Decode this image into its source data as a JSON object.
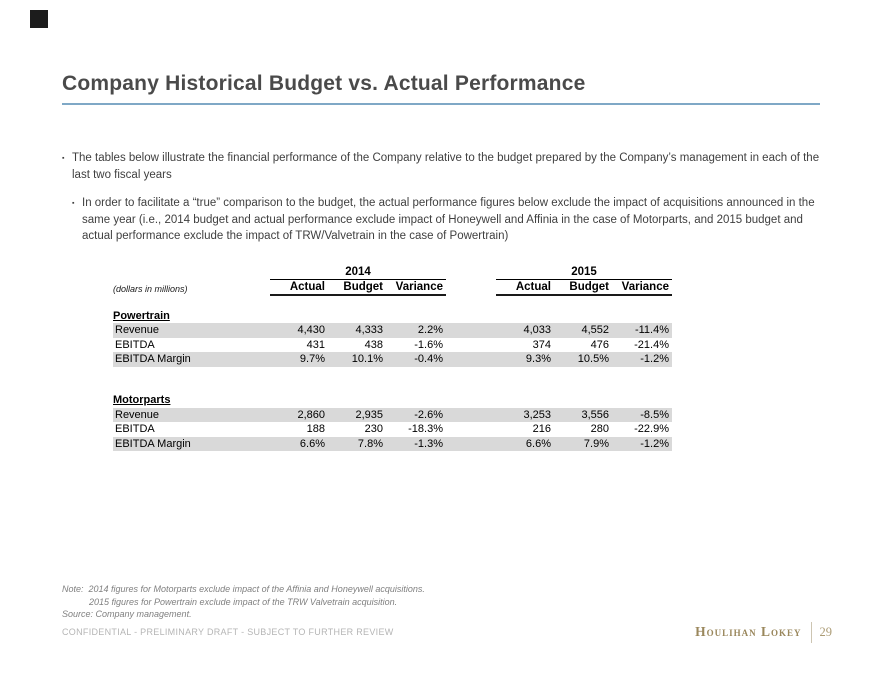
{
  "slide": {
    "title": "Company Historical Budget vs. Actual Performance",
    "accent_underline_color": "#7fa8c6",
    "shaded_row_color": "#d9d9d9",
    "brand_color": "#9a875c"
  },
  "bullets": {
    "level1": "The tables below illustrate the financial performance of the Company relative to the budget prepared by the Company’s management in each of the last two fiscal years",
    "level2": "In order to facilitate a “true” comparison to the budget, the actual performance figures below exclude the impact of acquisitions announced in the same year (i.e., 2014 budget and actual performance exclude impact of Honeywell and Affinia in the case of Motorparts, and 2015 budget and actual performance exclude the impact of TRW/Valvetrain in the case of Powertrain)"
  },
  "table": {
    "units_label": "(dollars in millions)",
    "year_groups": [
      "2014",
      "2015"
    ],
    "col_headers": [
      "Actual",
      "Budget",
      "Variance"
    ],
    "sections": [
      {
        "name": "Powertrain",
        "rows": [
          {
            "label": "Revenue",
            "y2014": [
              "4,430",
              "4,333",
              "2.2%"
            ],
            "y2015": [
              "4,033",
              "4,552",
              "-11.4%"
            ]
          },
          {
            "label": "EBITDA",
            "y2014": [
              "431",
              "438",
              "-1.6%"
            ],
            "y2015": [
              "374",
              "476",
              "-21.4%"
            ]
          },
          {
            "label": "EBITDA Margin",
            "y2014": [
              "9.7%",
              "10.1%",
              "-0.4%"
            ],
            "y2015": [
              "9.3%",
              "10.5%",
              "-1.2%"
            ]
          }
        ]
      },
      {
        "name": "Motorparts",
        "rows": [
          {
            "label": "Revenue",
            "y2014": [
              "2,860",
              "2,935",
              "-2.6%"
            ],
            "y2015": [
              "3,253",
              "3,556",
              "-8.5%"
            ]
          },
          {
            "label": "EBITDA",
            "y2014": [
              "188",
              "230",
              "-18.3%"
            ],
            "y2015": [
              "216",
              "280",
              "-22.9%"
            ]
          },
          {
            "label": "EBITDA Margin",
            "y2014": [
              "6.6%",
              "7.8%",
              "-1.3%"
            ],
            "y2015": [
              "6.6%",
              "7.9%",
              "-1.2%"
            ]
          }
        ]
      }
    ]
  },
  "footer": {
    "note_line1": "Note:  2014 figures for Motorparts exclude impact of the Affinia and Honeywell acquisitions.",
    "note_line2": "2015 figures for Powertrain exclude impact of the TRW Valvetrain acquisition.",
    "source_line": "Source: Company management.",
    "confidential": "CONFIDENTIAL - PRELIMINARY DRAFT - SUBJECT TO FURTHER REVIEW",
    "brand": "Houlihan Lokey",
    "page_number": "29"
  }
}
